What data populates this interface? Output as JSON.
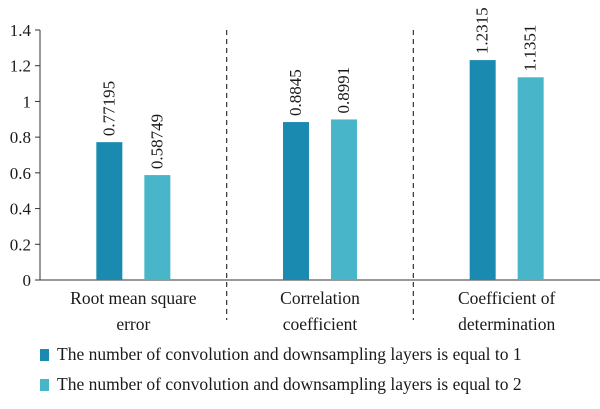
{
  "chart_data": {
    "type": "bar",
    "categories": [
      [
        "Root mean square",
        "error"
      ],
      [
        "Correlation",
        "coefficient"
      ],
      [
        "Coefficient of",
        "determination"
      ]
    ],
    "series": [
      {
        "name": "The number of convolution and downsampling layers is equal to 1",
        "color": "#1b8ab1",
        "values": [
          0.77195,
          0.8845,
          1.2315
        ],
        "labels": [
          "0.77195",
          "0.8845",
          "1.2315"
        ]
      },
      {
        "name": "The number of convolution and downsampling layers is equal to 2",
        "color": "#48b6c8",
        "values": [
          0.58749,
          0.8991,
          1.1351
        ],
        "labels": [
          "0.58749",
          "0.8991",
          "1.1351"
        ]
      }
    ],
    "ylim": [
      0,
      1.4
    ],
    "yticks": [
      "0",
      "0.2",
      "0.4",
      "0.6",
      "0.8",
      "1",
      "1.2",
      "1.4"
    ],
    "category_separators": "dashed",
    "grid": false,
    "legend_position": "bottom",
    "title": "",
    "xlabel": "",
    "ylabel": ""
  }
}
